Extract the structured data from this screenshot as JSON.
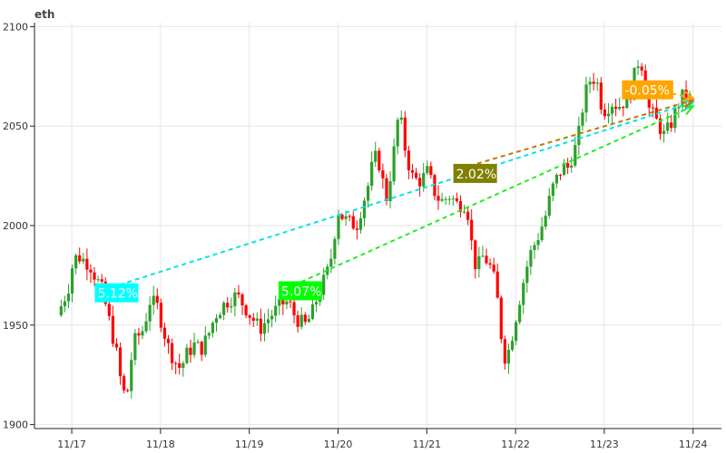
{
  "chart_data": {
    "type": "candlestick",
    "title": "eth",
    "ylim": [
      1898,
      2102
    ],
    "yticks": [
      1900,
      1950,
      2000,
      2050,
      2100
    ],
    "xticks": [
      {
        "label": "11/17",
        "x": 0
      },
      {
        "label": "11/18",
        "x": 1
      },
      {
        "label": "11/19",
        "x": 2
      },
      {
        "label": "11/20",
        "x": 3
      },
      {
        "label": "11/21",
        "x": 4
      },
      {
        "label": "11/22",
        "x": 5
      },
      {
        "label": "11/23",
        "x": 6
      },
      {
        "label": "11/24",
        "x": 7
      }
    ],
    "xlim": [
      -0.42,
      7.32
    ],
    "grid": true,
    "up_color": "#2ca02c",
    "down_color": "#ff0000",
    "price_path": [
      [
        -0.12,
        1955
      ],
      [
        0.0,
        1968
      ],
      [
        0.05,
        1980
      ],
      [
        0.1,
        1985
      ],
      [
        0.2,
        1982
      ],
      [
        0.25,
        1980
      ],
      [
        0.3,
        1975
      ],
      [
        0.38,
        1968
      ],
      [
        0.45,
        1955
      ],
      [
        0.5,
        1945
      ],
      [
        0.55,
        1935
      ],
      [
        0.6,
        1920
      ],
      [
        0.66,
        1912
      ],
      [
        0.7,
        1930
      ],
      [
        0.75,
        1942
      ],
      [
        0.85,
        1948
      ],
      [
        0.92,
        1962
      ],
      [
        1.0,
        1960
      ],
      [
        1.05,
        1952
      ],
      [
        1.12,
        1940
      ],
      [
        1.2,
        1932
      ],
      [
        1.27,
        1928
      ],
      [
        1.33,
        1935
      ],
      [
        1.42,
        1940
      ],
      [
        1.5,
        1938
      ],
      [
        1.58,
        1945
      ],
      [
        1.66,
        1955
      ],
      [
        1.75,
        1960
      ],
      [
        1.82,
        1963
      ],
      [
        1.9,
        1965
      ],
      [
        1.98,
        1960
      ],
      [
        2.05,
        1955
      ],
      [
        2.1,
        1952
      ],
      [
        2.16,
        1948
      ],
      [
        2.25,
        1953
      ],
      [
        2.35,
        1958
      ],
      [
        2.45,
        1962
      ],
      [
        2.5,
        1960
      ],
      [
        2.55,
        1955
      ],
      [
        2.6,
        1952
      ],
      [
        2.68,
        1950
      ],
      [
        2.75,
        1956
      ],
      [
        2.8,
        1963
      ],
      [
        2.88,
        1972
      ],
      [
        2.95,
        1980
      ],
      [
        3.0,
        1995
      ],
      [
        3.04,
        2008
      ],
      [
        3.08,
        2005
      ],
      [
        3.15,
        2002
      ],
      [
        3.25,
        2000
      ],
      [
        3.3,
        2008
      ],
      [
        3.38,
        2020
      ],
      [
        3.45,
        2035
      ],
      [
        3.52,
        2030
      ],
      [
        3.58,
        2012
      ],
      [
        3.62,
        2022
      ],
      [
        3.68,
        2040
      ],
      [
        3.72,
        2055
      ],
      [
        3.76,
        2050
      ],
      [
        3.8,
        2038
      ],
      [
        3.87,
        2025
      ],
      [
        3.95,
        2022
      ],
      [
        4.02,
        2025
      ],
      [
        4.06,
        2028
      ],
      [
        4.1,
        2020
      ],
      [
        4.15,
        2015
      ],
      [
        4.2,
        2012
      ],
      [
        4.3,
        2015
      ],
      [
        4.4,
        2010
      ],
      [
        4.45,
        2012
      ],
      [
        4.5,
        2008
      ],
      [
        4.55,
        1990
      ],
      [
        4.6,
        1978
      ],
      [
        4.68,
        1985
      ],
      [
        4.75,
        1980
      ],
      [
        4.82,
        1970
      ],
      [
        4.88,
        1945
      ],
      [
        4.93,
        1932
      ],
      [
        4.98,
        1940
      ],
      [
        5.05,
        1955
      ],
      [
        5.12,
        1970
      ],
      [
        5.2,
        1985
      ],
      [
        5.3,
        1995
      ],
      [
        5.38,
        2005
      ],
      [
        5.45,
        2018
      ],
      [
        5.52,
        2025
      ],
      [
        5.58,
        2030
      ],
      [
        5.62,
        2028
      ],
      [
        5.68,
        2035
      ],
      [
        5.74,
        2042
      ],
      [
        5.8,
        2060
      ],
      [
        5.85,
        2070
      ],
      [
        5.9,
        2075
      ],
      [
        5.96,
        2072
      ],
      [
        6.0,
        2062
      ],
      [
        6.05,
        2058
      ],
      [
        6.12,
        2062
      ],
      [
        6.2,
        2060
      ],
      [
        6.28,
        2063
      ],
      [
        6.35,
        2068
      ],
      [
        6.4,
        2080
      ],
      [
        6.45,
        2085
      ],
      [
        6.5,
        2070
      ],
      [
        6.55,
        2058
      ],
      [
        6.6,
        2055
      ],
      [
        6.66,
        2050
      ],
      [
        6.72,
        2045
      ],
      [
        6.8,
        2052
      ],
      [
        6.85,
        2058
      ],
      [
        6.9,
        2064
      ],
      [
        6.96,
        2066
      ],
      [
        7.0,
        2064
      ]
    ],
    "annotations": [
      {
        "text": "5.12%",
        "x": 0.28,
        "y": 1966,
        "bg": "#00ffff",
        "line_color": "#00e5e5",
        "from": [
          0.45,
          1969
        ],
        "to": [
          7.0,
          2062
        ]
      },
      {
        "text": "5.07%",
        "x": 2.35,
        "y": 1967,
        "bg": "#00ff00",
        "line_color": "#22ee22",
        "from": [
          2.5,
          1970
        ],
        "to": [
          7.0,
          2060
        ]
      },
      {
        "text": "2.02%",
        "x": 4.32,
        "y": 2026,
        "bg": "#808000",
        "line_color": "#c07800",
        "from": [
          4.48,
          2030
        ],
        "to": [
          7.0,
          2063
        ]
      },
      {
        "text": "-0.05%",
        "x": 6.22,
        "y": 2068,
        "bg": "#ffa500",
        "line_color": "#ffa500",
        "from": [
          6.4,
          2070
        ],
        "to": [
          7.0,
          2064
        ]
      }
    ]
  }
}
